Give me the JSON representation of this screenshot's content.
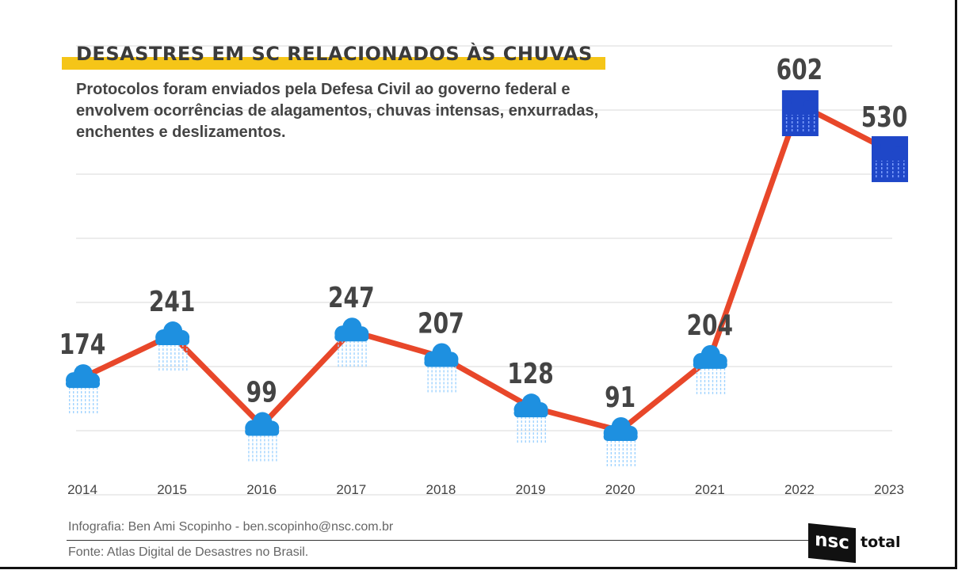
{
  "header": {
    "title": "DESASTRES EM SC RELACIONADOS ÀS CHUVAS",
    "subtitle": "Protocolos foram enviados pela Defesa Civil ao governo federal e envolvem ocorrências de alagamentos, chuvas intensas, enxurradas, enchentes e deslizamentos."
  },
  "footer": {
    "credit": "Infografia: Ben Ami Scopinho   -   ben.scopinho@nsc.com.br",
    "source": "Fonte: Atlas Digital de Desastres no Brasil.",
    "logo_box": "nsc",
    "logo_text": "total"
  },
  "colors": {
    "line": "#e8472a",
    "cloud": "#1e90e0",
    "cloud_highlight": "#1f47c8",
    "title_bar": "#f5c518",
    "grid": "#e6e6e6"
  },
  "icons": {
    "marker": "rain-cloud-icon"
  },
  "chart_data": {
    "type": "line",
    "title": "DESASTRES EM SC RELACIONADOS ÀS CHUVAS",
    "xlabel": "",
    "ylabel": "",
    "categories": [
      "2014",
      "2015",
      "2016",
      "2017",
      "2018",
      "2019",
      "2020",
      "2021",
      "2022",
      "2023"
    ],
    "series": [
      {
        "values": [
          174,
          241,
          99,
          247,
          207,
          128,
          91,
          204,
          602,
          530
        ]
      }
    ],
    "ylim": [
      0,
      650
    ],
    "grid": true,
    "legend": "none",
    "data_labels": true
  }
}
